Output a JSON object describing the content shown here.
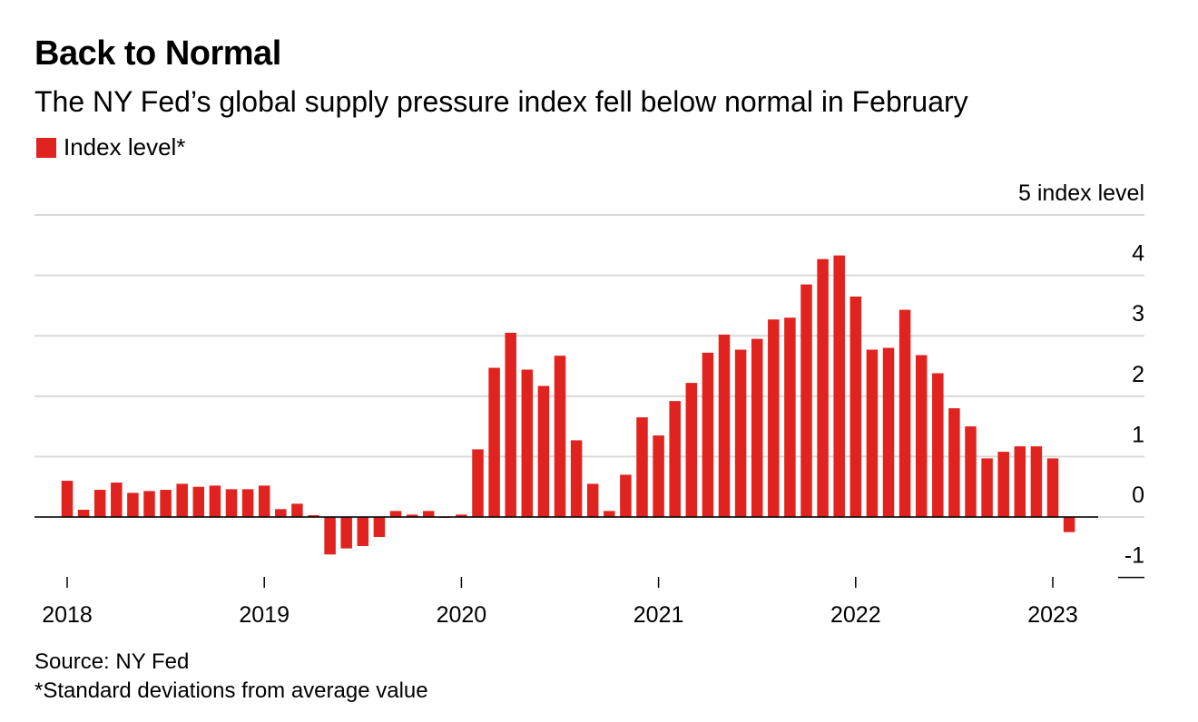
{
  "title": "Back to Normal",
  "subtitle": "The NY Fed’s global supply pressure index fell below normal in February",
  "legend": {
    "label": "Index level*",
    "color": "#e0231e"
  },
  "footnotes": {
    "source": "Source: NY Fed",
    "note": "*Standard deviations from average value"
  },
  "chart_data": {
    "type": "bar",
    "y_unit_label": "index level",
    "ylim": [
      -1,
      5
    ],
    "yticks": [
      5,
      4,
      3,
      2,
      1,
      0,
      -1
    ],
    "ytick_labels": [
      "5 index level",
      "4",
      "3",
      "2",
      "1",
      "0",
      "-1"
    ],
    "xtick_labels": [
      "2018",
      "2019",
      "2020",
      "2021",
      "2022",
      "2023"
    ],
    "grid": true,
    "bar_color": "#e0231e",
    "start": "2018-01",
    "series": [
      {
        "values": [
          0.6,
          0.12,
          0.45,
          0.57,
          0.4,
          0.43,
          0.45,
          0.55,
          0.5,
          0.52,
          0.46,
          0.46,
          0.52,
          0.13,
          0.22,
          0.03,
          -0.62,
          -0.52,
          -0.48,
          -0.33,
          0.1,
          0.04,
          0.1,
          0.0,
          0.04,
          1.12,
          2.47,
          3.05,
          2.44,
          2.17,
          2.67,
          1.27,
          0.55,
          0.1,
          0.7,
          1.65,
          1.35,
          1.92,
          2.22,
          2.72,
          3.02,
          2.77,
          2.95,
          3.27,
          3.3,
          3.85,
          4.27,
          4.33,
          3.65,
          2.77,
          2.8,
          3.43,
          2.68,
          2.38,
          1.8,
          1.5,
          0.97,
          1.08,
          1.17,
          1.17,
          0.97,
          -0.25
        ]
      }
    ]
  }
}
